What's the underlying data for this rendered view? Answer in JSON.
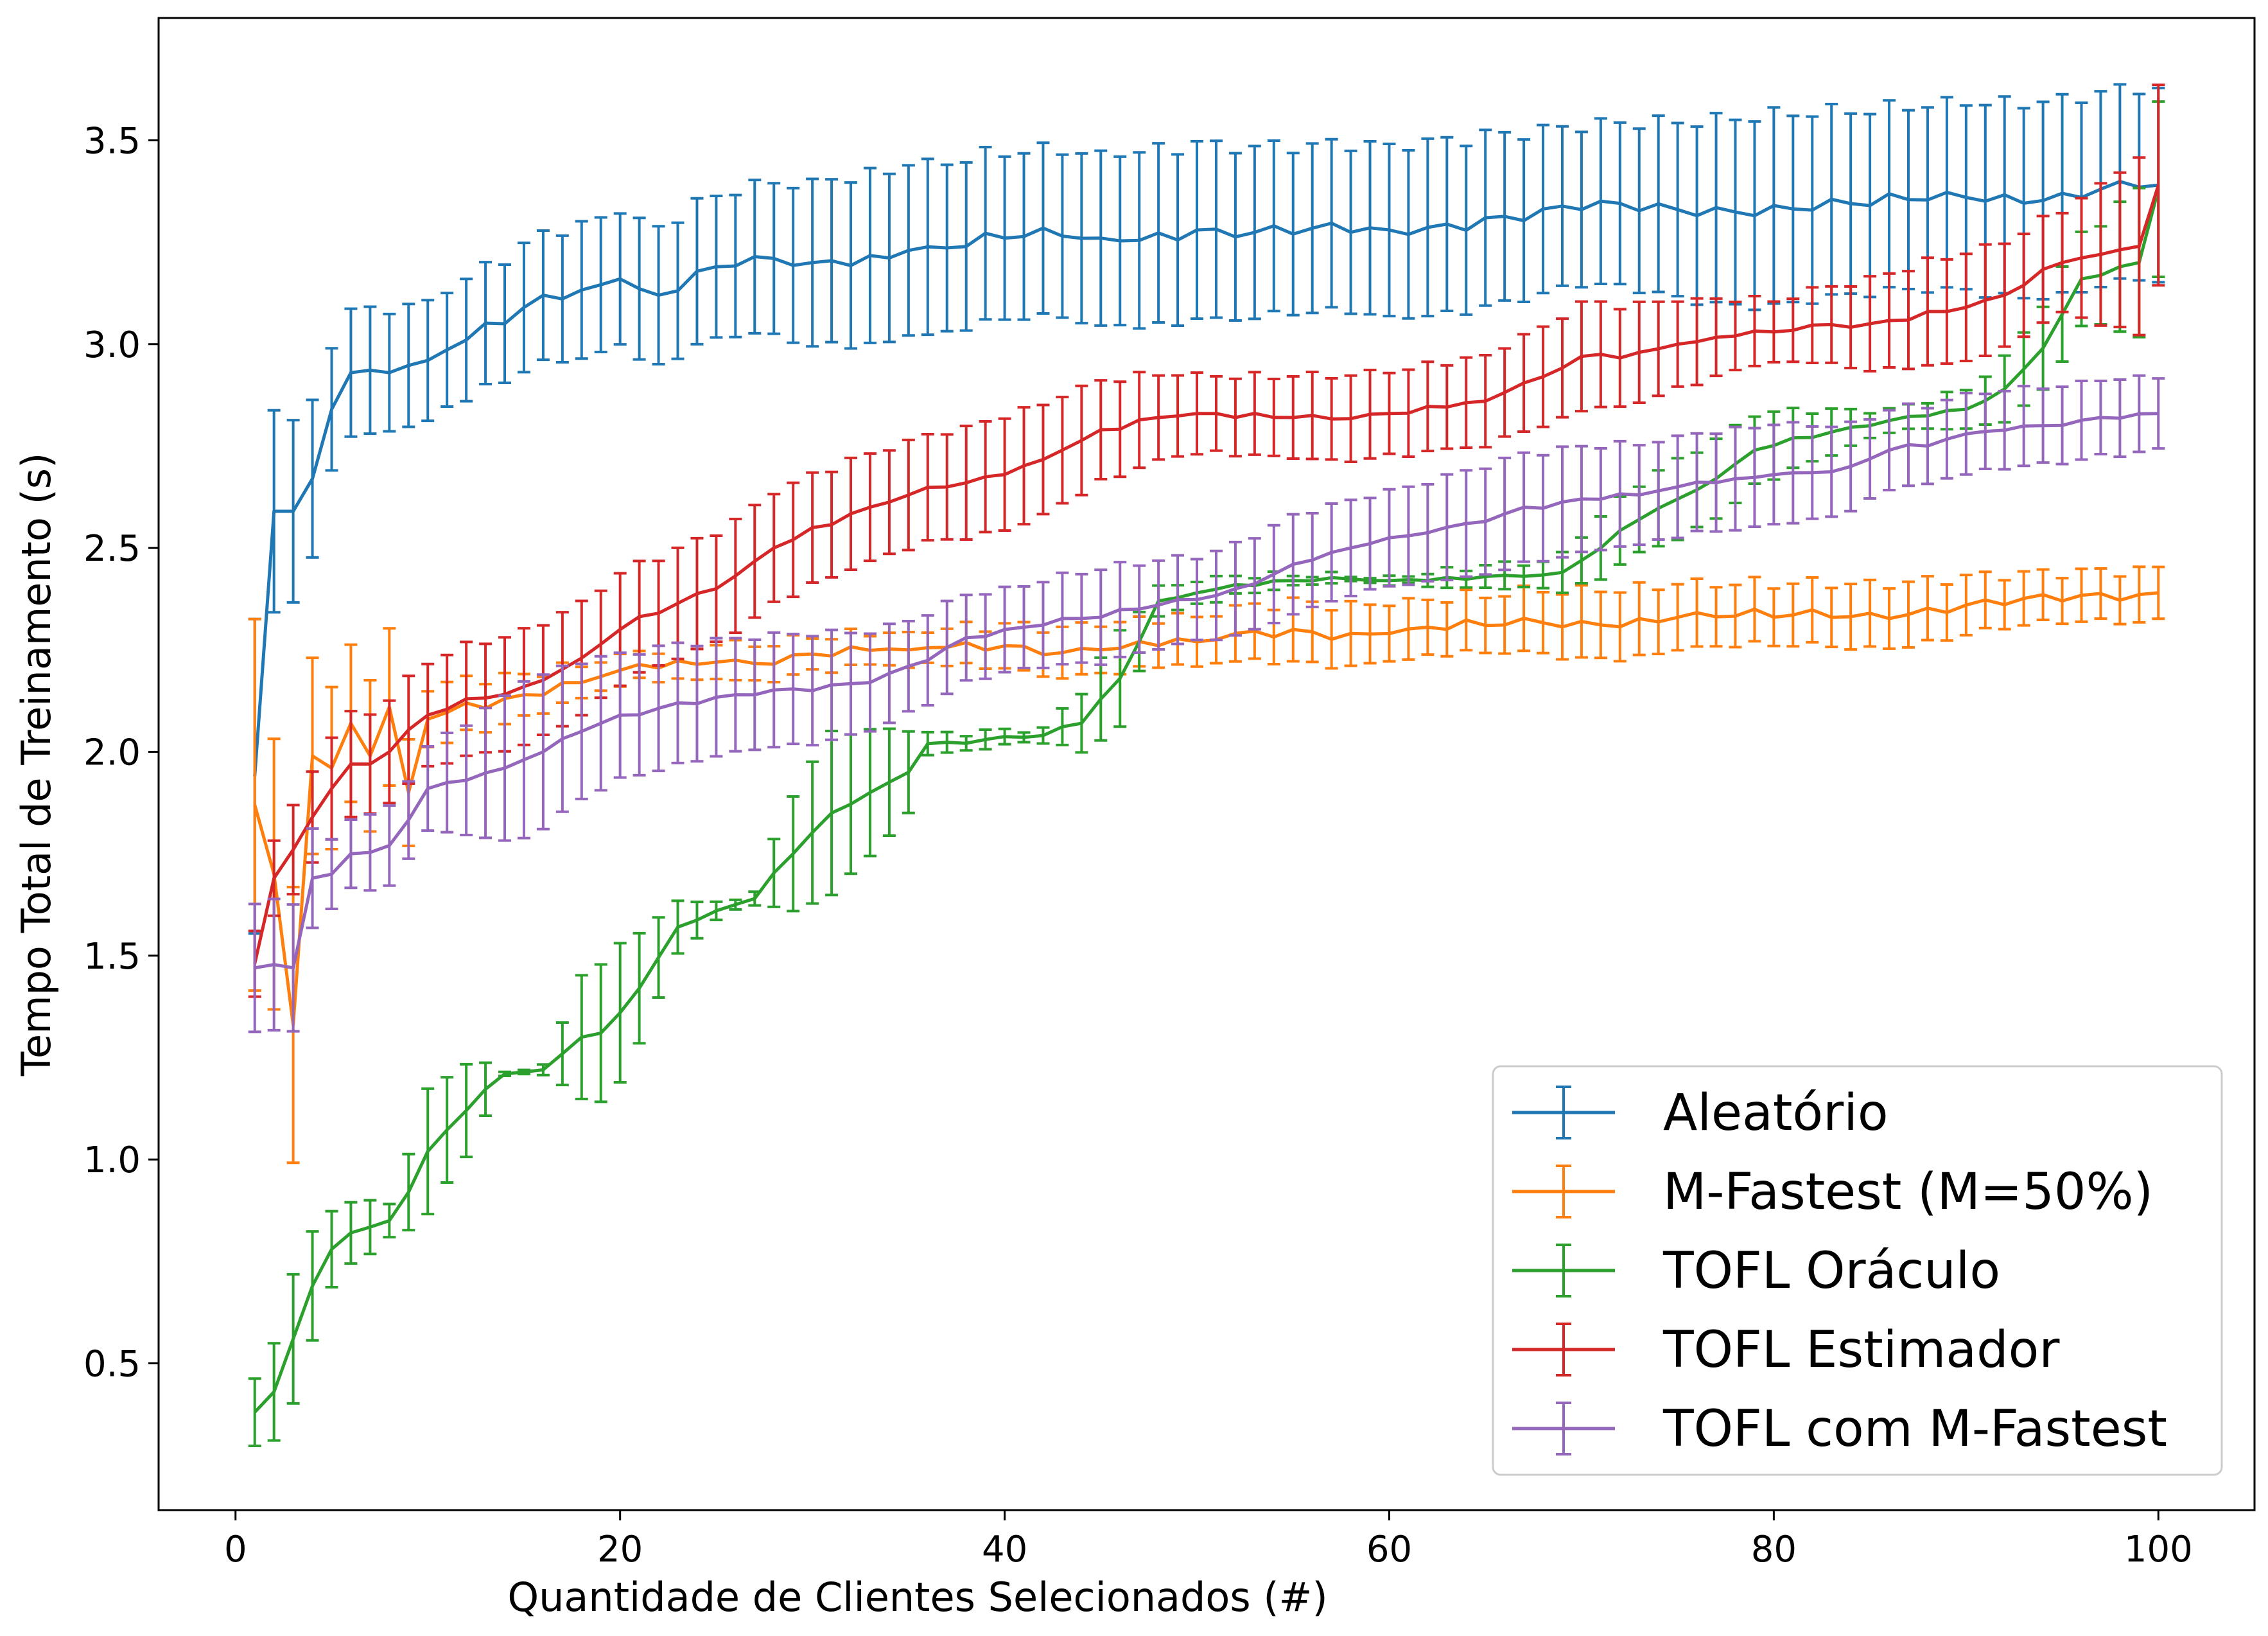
{
  "chart_data": {
    "type": "line",
    "title": "",
    "xlabel": "Quantidade de Clientes Selecionados (#)",
    "ylabel": "Tempo Total de Treinamento (s)",
    "xlim": [
      -4,
      105
    ],
    "ylim": [
      0.14,
      3.8
    ],
    "xticks": [
      0,
      20,
      40,
      60,
      80,
      100
    ],
    "yticks": [
      0.5,
      1.0,
      1.5,
      2.0,
      2.5,
      3.0,
      3.5
    ],
    "xtick_labels": [
      "0",
      "20",
      "40",
      "60",
      "80",
      "100"
    ],
    "ytick_labels": [
      "0.5",
      "1.0",
      "1.5",
      "2.0",
      "2.5",
      "3.0",
      "3.5"
    ],
    "grid": false,
    "legend_position": "bottom-right",
    "error_bars": true,
    "series": [
      {
        "name": "Aleatório",
        "color": "#1f77b4",
        "knots": [
          [
            1,
            1.94
          ],
          [
            2,
            2.59
          ],
          [
            3,
            2.59
          ],
          [
            4,
            2.67
          ],
          [
            5,
            2.84
          ],
          [
            6,
            2.93
          ],
          [
            8,
            2.93
          ],
          [
            10,
            2.96
          ],
          [
            12,
            3.01
          ],
          [
            14,
            3.05
          ],
          [
            16,
            3.12
          ],
          [
            20,
            3.16
          ],
          [
            22,
            3.12
          ],
          [
            25,
            3.19
          ],
          [
            30,
            3.2
          ],
          [
            35,
            3.23
          ],
          [
            40,
            3.26
          ],
          [
            45,
            3.26
          ],
          [
            50,
            3.28
          ],
          [
            55,
            3.27
          ],
          [
            60,
            3.28
          ],
          [
            65,
            3.31
          ],
          [
            70,
            3.33
          ],
          [
            75,
            3.33
          ],
          [
            80,
            3.34
          ],
          [
            85,
            3.34
          ],
          [
            90,
            3.36
          ],
          [
            95,
            3.37
          ],
          [
            97,
            3.38
          ],
          [
            100,
            3.39
          ]
        ],
        "err_knots": [
          [
            1,
            0.38
          ],
          [
            2,
            0.25
          ],
          [
            5,
            0.15
          ],
          [
            10,
            0.15
          ],
          [
            20,
            0.16
          ],
          [
            30,
            0.2
          ],
          [
            40,
            0.21
          ],
          [
            50,
            0.21
          ],
          [
            60,
            0.21
          ],
          [
            70,
            0.2
          ],
          [
            80,
            0.23
          ],
          [
            90,
            0.23
          ],
          [
            100,
            0.24
          ]
        ],
        "wiggle": 0.025,
        "err_wiggle": 0.012
      },
      {
        "name": "M-Fastest (M=50%)",
        "color": "#ff7f0e",
        "knots": [
          [
            1,
            1.87
          ],
          [
            2,
            1.7
          ],
          [
            3,
            1.33
          ],
          [
            4,
            1.99
          ],
          [
            5,
            1.96
          ],
          [
            6,
            2.07
          ],
          [
            7,
            1.99
          ],
          [
            8,
            2.11
          ],
          [
            9,
            1.9
          ],
          [
            10,
            2.08
          ],
          [
            12,
            2.12
          ],
          [
            15,
            2.14
          ],
          [
            18,
            2.17
          ],
          [
            20,
            2.2
          ],
          [
            25,
            2.22
          ],
          [
            30,
            2.24
          ],
          [
            35,
            2.25
          ],
          [
            40,
            2.26
          ],
          [
            45,
            2.25
          ],
          [
            50,
            2.27
          ],
          [
            55,
            2.3
          ],
          [
            60,
            2.29
          ],
          [
            65,
            2.31
          ],
          [
            70,
            2.32
          ],
          [
            75,
            2.33
          ],
          [
            80,
            2.33
          ],
          [
            85,
            2.34
          ],
          [
            90,
            2.36
          ],
          [
            95,
            2.37
          ],
          [
            100,
            2.39
          ]
        ],
        "err_knots": [
          [
            1,
            0.46
          ],
          [
            2,
            0.33
          ],
          [
            3,
            0.34
          ],
          [
            4,
            0.25
          ],
          [
            5,
            0.2
          ],
          [
            8,
            0.19
          ],
          [
            10,
            0.07
          ],
          [
            15,
            0.05
          ],
          [
            20,
            0.04
          ],
          [
            30,
            0.04
          ],
          [
            40,
            0.05
          ],
          [
            45,
            0.06
          ],
          [
            55,
            0.07
          ],
          [
            60,
            0.07
          ],
          [
            70,
            0.08
          ],
          [
            80,
            0.08
          ],
          [
            90,
            0.07
          ],
          [
            100,
            0.06
          ]
        ],
        "wiggle": 0.02,
        "err_wiggle": 0.01
      },
      {
        "name": "TOFL Oráculo",
        "color": "#2ca02c",
        "knots": [
          [
            1,
            0.38
          ],
          [
            2,
            0.43
          ],
          [
            3,
            0.56
          ],
          [
            4,
            0.69
          ],
          [
            5,
            0.78
          ],
          [
            6,
            0.82
          ],
          [
            8,
            0.85
          ],
          [
            9,
            0.92
          ],
          [
            10,
            1.02
          ],
          [
            12,
            1.12
          ],
          [
            14,
            1.21
          ],
          [
            16,
            1.22
          ],
          [
            18,
            1.3
          ],
          [
            19,
            1.31
          ],
          [
            21,
            1.42
          ],
          [
            23,
            1.57
          ],
          [
            25,
            1.61
          ],
          [
            27,
            1.64
          ],
          [
            29,
            1.75
          ],
          [
            31,
            1.85
          ],
          [
            33,
            1.9
          ],
          [
            35,
            1.95
          ],
          [
            36,
            2.02
          ],
          [
            42,
            2.04
          ],
          [
            44,
            2.07
          ],
          [
            46,
            2.18
          ],
          [
            48,
            2.37
          ],
          [
            50,
            2.39
          ],
          [
            52,
            2.41
          ],
          [
            55,
            2.42
          ],
          [
            60,
            2.42
          ],
          [
            65,
            2.43
          ],
          [
            69,
            2.44
          ],
          [
            71,
            2.5
          ],
          [
            73,
            2.57
          ],
          [
            75,
            2.62
          ],
          [
            77,
            2.67
          ],
          [
            79,
            2.74
          ],
          [
            81,
            2.77
          ],
          [
            85,
            2.8
          ],
          [
            90,
            2.84
          ],
          [
            92,
            2.89
          ],
          [
            94,
            2.99
          ],
          [
            96,
            3.16
          ],
          [
            98,
            3.19
          ],
          [
            99,
            3.2
          ],
          [
            100,
            3.38
          ]
        ],
        "err_knots": [
          [
            1,
            0.08
          ],
          [
            3,
            0.16
          ],
          [
            5,
            0.09
          ],
          [
            8,
            0.04
          ],
          [
            10,
            0.15
          ],
          [
            12,
            0.12
          ],
          [
            14,
            0.01
          ],
          [
            16,
            0.01
          ],
          [
            18,
            0.15
          ],
          [
            20,
            0.17
          ],
          [
            22,
            0.09
          ],
          [
            25,
            0.02
          ],
          [
            27,
            0.02
          ],
          [
            29,
            0.15
          ],
          [
            31,
            0.2
          ],
          [
            35,
            0.1
          ],
          [
            36,
            0.02
          ],
          [
            42,
            0.02
          ],
          [
            44,
            0.08
          ],
          [
            46,
            0.12
          ],
          [
            48,
            0.03
          ],
          [
            52,
            0.02
          ],
          [
            60,
            0.01
          ],
          [
            68,
            0.03
          ],
          [
            71,
            0.08
          ],
          [
            75,
            0.1
          ],
          [
            78,
            0.09
          ],
          [
            82,
            0.06
          ],
          [
            86,
            0.03
          ],
          [
            90,
            0.05
          ],
          [
            94,
            0.1
          ],
          [
            97,
            0.12
          ],
          [
            100,
            0.22
          ]
        ],
        "wiggle": 0.008,
        "err_wiggle": 0.01
      },
      {
        "name": "TOFL Estimador",
        "color": "#d62728",
        "knots": [
          [
            1,
            1.48
          ],
          [
            2,
            1.69
          ],
          [
            3,
            1.76
          ],
          [
            4,
            1.84
          ],
          [
            5,
            1.91
          ],
          [
            6,
            1.97
          ],
          [
            7,
            1.97
          ],
          [
            8,
            2.0
          ],
          [
            10,
            2.09
          ],
          [
            12,
            2.13
          ],
          [
            15,
            2.16
          ],
          [
            18,
            2.23
          ],
          [
            20,
            2.3
          ],
          [
            22,
            2.34
          ],
          [
            25,
            2.4
          ],
          [
            28,
            2.5
          ],
          [
            30,
            2.55
          ],
          [
            33,
            2.6
          ],
          [
            35,
            2.63
          ],
          [
            38,
            2.66
          ],
          [
            40,
            2.68
          ],
          [
            43,
            2.74
          ],
          [
            45,
            2.79
          ],
          [
            48,
            2.82
          ],
          [
            50,
            2.83
          ],
          [
            52,
            2.82
          ],
          [
            55,
            2.82
          ],
          [
            60,
            2.83
          ],
          [
            65,
            2.86
          ],
          [
            68,
            2.92
          ],
          [
            70,
            2.97
          ],
          [
            73,
            2.98
          ],
          [
            75,
            3.0
          ],
          [
            78,
            3.02
          ],
          [
            80,
            3.03
          ],
          [
            85,
            3.05
          ],
          [
            88,
            3.08
          ],
          [
            90,
            3.09
          ],
          [
            92,
            3.12
          ],
          [
            95,
            3.2
          ],
          [
            97,
            3.22
          ],
          [
            99,
            3.24
          ],
          [
            100,
            3.39
          ]
        ],
        "err_knots": [
          [
            1,
            0.08
          ],
          [
            5,
            0.13
          ],
          [
            10,
            0.13
          ],
          [
            20,
            0.14
          ],
          [
            30,
            0.13
          ],
          [
            40,
            0.14
          ],
          [
            50,
            0.1
          ],
          [
            55,
            0.1
          ],
          [
            60,
            0.1
          ],
          [
            70,
            0.13
          ],
          [
            80,
            0.08
          ],
          [
            85,
            0.11
          ],
          [
            90,
            0.13
          ],
          [
            95,
            0.13
          ],
          [
            100,
            0.24
          ]
        ],
        "wiggle": 0.012,
        "err_wiggle": 0.01
      },
      {
        "name": "TOFL com M-Fastest",
        "color": "#9467bd",
        "knots": [
          [
            1,
            1.47
          ],
          [
            3,
            1.47
          ],
          [
            4,
            1.69
          ],
          [
            5,
            1.7
          ],
          [
            6,
            1.75
          ],
          [
            8,
            1.77
          ],
          [
            10,
            1.91
          ],
          [
            12,
            1.93
          ],
          [
            14,
            1.96
          ],
          [
            16,
            2.0
          ],
          [
            18,
            2.05
          ],
          [
            20,
            2.09
          ],
          [
            23,
            2.12
          ],
          [
            26,
            2.14
          ],
          [
            30,
            2.15
          ],
          [
            33,
            2.17
          ],
          [
            35,
            2.21
          ],
          [
            38,
            2.28
          ],
          [
            40,
            2.3
          ],
          [
            45,
            2.33
          ],
          [
            48,
            2.36
          ],
          [
            52,
            2.4
          ],
          [
            55,
            2.46
          ],
          [
            58,
            2.5
          ],
          [
            61,
            2.53
          ],
          [
            64,
            2.56
          ],
          [
            67,
            2.6
          ],
          [
            70,
            2.62
          ],
          [
            73,
            2.63
          ],
          [
            75,
            2.65
          ],
          [
            78,
            2.67
          ],
          [
            80,
            2.68
          ],
          [
            84,
            2.7
          ],
          [
            86,
            2.74
          ],
          [
            88,
            2.75
          ],
          [
            90,
            2.78
          ],
          [
            94,
            2.8
          ],
          [
            97,
            2.82
          ],
          [
            100,
            2.83
          ]
        ],
        "err_knots": [
          [
            1,
            0.16
          ],
          [
            3,
            0.16
          ],
          [
            5,
            0.08
          ],
          [
            10,
            0.1
          ],
          [
            15,
            0.2
          ],
          [
            20,
            0.15
          ],
          [
            25,
            0.14
          ],
          [
            30,
            0.14
          ],
          [
            35,
            0.11
          ],
          [
            40,
            0.1
          ],
          [
            45,
            0.12
          ],
          [
            50,
            0.1
          ],
          [
            55,
            0.12
          ],
          [
            60,
            0.12
          ],
          [
            65,
            0.13
          ],
          [
            70,
            0.13
          ],
          [
            80,
            0.12
          ],
          [
            85,
            0.1
          ],
          [
            90,
            0.1
          ],
          [
            95,
            0.09
          ],
          [
            100,
            0.09
          ]
        ],
        "wiggle": 0.01,
        "err_wiggle": 0.008
      }
    ]
  }
}
